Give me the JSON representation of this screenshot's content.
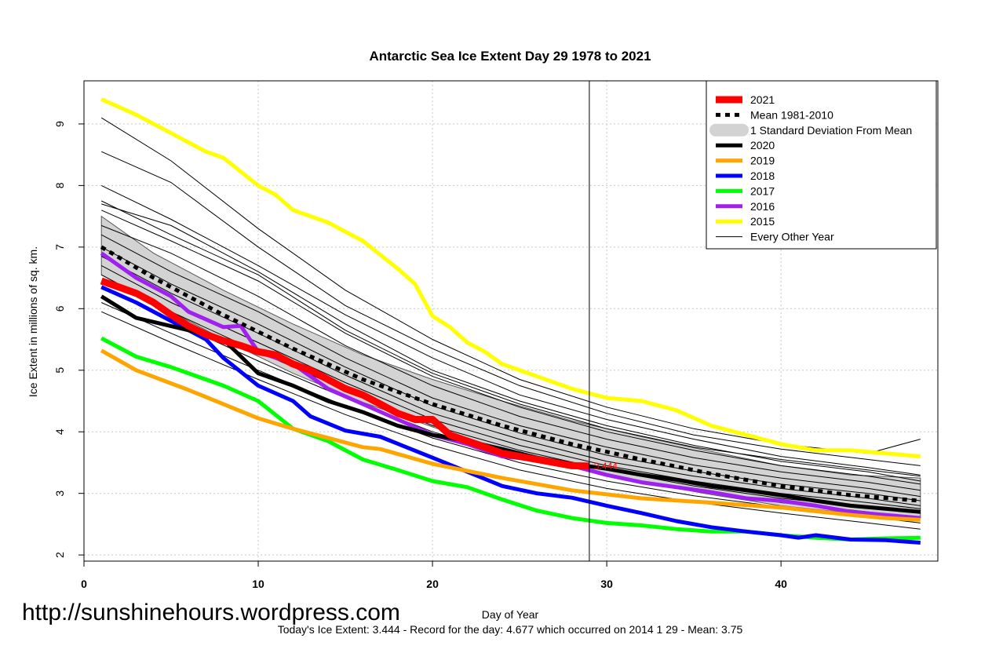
{
  "chart_data": {
    "type": "line",
    "title": "Antarctic Sea Ice Extent Day 29 1978 to 2021",
    "xlabel": "Day of Year",
    "ylabel": "Ice Extent in millions of sq. km.",
    "xlim": [
      0,
      49
    ],
    "ylim": [
      1.9,
      9.7
    ],
    "x_ticks": [
      0,
      10,
      20,
      30,
      40
    ],
    "y_ticks": [
      2,
      3,
      4,
      5,
      6,
      7,
      8,
      9
    ],
    "grid": true,
    "legend_position": "top-right",
    "current_day": 29,
    "current_value_label": "3.444",
    "series": [
      {
        "name": "2021",
        "color": "#ff0000",
        "width": 9,
        "x": [
          1,
          2,
          3,
          4,
          5,
          6,
          7,
          8,
          9,
          10,
          11,
          12,
          13,
          14,
          15,
          16,
          17,
          18,
          19,
          20,
          21,
          22,
          23,
          24,
          25,
          26,
          27,
          28,
          29
        ],
        "y": [
          6.45,
          6.35,
          6.25,
          6.1,
          5.9,
          5.72,
          5.58,
          5.48,
          5.4,
          5.3,
          5.25,
          5.1,
          5.0,
          4.85,
          4.7,
          4.6,
          4.45,
          4.3,
          4.2,
          4.2,
          3.95,
          3.85,
          3.75,
          3.65,
          3.6,
          3.55,
          3.5,
          3.45,
          3.444
        ]
      },
      {
        "name": "Mean 1981-2010",
        "color": "#000000",
        "width": 5,
        "dash": "6,6",
        "x": [
          1,
          4,
          8,
          12,
          16,
          20,
          24,
          28,
          32,
          36,
          40,
          44,
          48
        ],
        "y": [
          7.0,
          6.5,
          5.9,
          5.35,
          4.85,
          4.45,
          4.1,
          3.8,
          3.55,
          3.32,
          3.12,
          2.97,
          2.88
        ]
      },
      {
        "name": "2020",
        "color": "#000000",
        "width": 5,
        "x": [
          1,
          3,
          6,
          8,
          10,
          12,
          14,
          16,
          18,
          20,
          22,
          24,
          26,
          28,
          30,
          32,
          34,
          36,
          38,
          40,
          42,
          44,
          46,
          48
        ],
        "y": [
          6.2,
          5.85,
          5.65,
          5.5,
          4.95,
          4.75,
          4.5,
          4.32,
          4.1,
          3.95,
          3.85,
          3.72,
          3.58,
          3.48,
          3.4,
          3.3,
          3.22,
          3.12,
          3.05,
          2.97,
          2.88,
          2.8,
          2.75,
          2.7
        ]
      },
      {
        "name": "2019",
        "color": "#ffa500",
        "width": 5,
        "x": [
          1,
          3,
          6,
          8,
          10,
          12,
          14,
          16,
          17,
          20,
          24,
          28,
          32,
          36,
          40,
          44,
          46,
          48
        ],
        "y": [
          5.32,
          5.0,
          4.68,
          4.45,
          4.22,
          4.05,
          3.9,
          3.75,
          3.72,
          3.48,
          3.25,
          3.05,
          2.92,
          2.85,
          2.77,
          2.65,
          2.6,
          2.57
        ]
      },
      {
        "name": "2018",
        "color": "#0000ff",
        "width": 5,
        "x": [
          1,
          3,
          5,
          7,
          8,
          10,
          12,
          13,
          15,
          17,
          20,
          22,
          24,
          26,
          28,
          30,
          32,
          34,
          36,
          38,
          40,
          41,
          42,
          44,
          46,
          48
        ],
        "y": [
          6.35,
          6.1,
          5.8,
          5.5,
          5.2,
          4.75,
          4.5,
          4.25,
          4.02,
          3.92,
          3.58,
          3.35,
          3.12,
          3.0,
          2.93,
          2.8,
          2.68,
          2.55,
          2.45,
          2.38,
          2.32,
          2.28,
          2.32,
          2.25,
          2.24,
          2.2
        ]
      },
      {
        "name": "2017",
        "color": "#00ff00",
        "width": 5,
        "x": [
          1,
          3,
          5,
          8,
          10,
          12,
          14,
          16,
          18,
          20,
          22,
          24,
          26,
          28,
          30,
          32,
          34,
          36,
          38,
          40,
          42,
          44,
          46,
          48
        ],
        "y": [
          5.52,
          5.22,
          5.05,
          4.75,
          4.5,
          4.05,
          3.85,
          3.55,
          3.38,
          3.2,
          3.1,
          2.9,
          2.72,
          2.6,
          2.52,
          2.48,
          2.42,
          2.38,
          2.38,
          2.32,
          2.28,
          2.25,
          2.27,
          2.28
        ]
      },
      {
        "name": "2016",
        "color": "#a020f0",
        "width": 5,
        "x": [
          1,
          3,
          5,
          6,
          8,
          9,
          10,
          12,
          14,
          16,
          18,
          20,
          22,
          24,
          26,
          28,
          30,
          32,
          34,
          36,
          38,
          40,
          42,
          44,
          46,
          48
        ],
        "y": [
          6.9,
          6.5,
          6.2,
          5.95,
          5.7,
          5.72,
          5.3,
          5.1,
          4.7,
          4.45,
          4.2,
          3.95,
          3.8,
          3.6,
          3.55,
          3.45,
          3.3,
          3.18,
          3.1,
          3.02,
          2.92,
          2.88,
          2.8,
          2.7,
          2.65,
          2.6
        ]
      },
      {
        "name": "2015",
        "color": "#ffff00",
        "width": 5,
        "x": [
          1,
          3,
          5,
          6,
          7,
          8,
          10,
          11,
          12,
          14,
          16,
          18,
          19,
          20,
          21,
          22,
          23,
          24,
          26,
          28,
          30,
          32,
          34,
          36,
          38,
          40,
          42,
          44,
          46,
          48
        ],
        "y": [
          9.4,
          9.15,
          8.85,
          8.7,
          8.55,
          8.45,
          8.0,
          7.85,
          7.6,
          7.4,
          7.1,
          6.65,
          6.4,
          5.88,
          5.7,
          5.45,
          5.3,
          5.1,
          4.9,
          4.7,
          4.55,
          4.5,
          4.35,
          4.1,
          3.95,
          3.8,
          3.7,
          3.7,
          3.65,
          3.6
        ]
      },
      {
        "name": "Every Other Year",
        "color": "#000000",
        "width": 1
      }
    ],
    "sd_band": {
      "name": "1 Standard Deviation From Mean",
      "color": "#d3d3d3",
      "x": [
        1,
        4,
        8,
        12,
        16,
        20,
        24,
        28,
        32,
        36,
        40,
        44,
        48
      ],
      "upper": [
        7.5,
        6.9,
        6.3,
        5.75,
        5.25,
        4.85,
        4.5,
        4.18,
        3.92,
        3.68,
        3.45,
        3.3,
        3.25
      ],
      "lower": [
        6.55,
        6.1,
        5.5,
        4.95,
        4.48,
        4.08,
        3.72,
        3.42,
        3.18,
        2.98,
        2.8,
        2.68,
        2.6
      ]
    },
    "thin_years": [
      {
        "x": [
          1,
          5,
          10,
          15,
          20,
          25,
          30,
          35,
          40,
          45,
          48
        ],
        "y": [
          9.1,
          8.4,
          7.3,
          6.3,
          5.5,
          4.85,
          4.4,
          4.05,
          3.8,
          3.65,
          3.88
        ]
      },
      {
        "x": [
          1,
          5,
          10,
          15,
          20,
          25,
          30,
          35,
          40,
          45,
          48
        ],
        "y": [
          8.55,
          8.05,
          7.0,
          6.05,
          5.35,
          4.75,
          4.3,
          3.95,
          3.72,
          3.55,
          3.45
        ]
      },
      {
        "x": [
          1,
          5,
          10,
          15,
          20,
          25,
          30,
          35,
          40,
          45,
          48
        ],
        "y": [
          8.0,
          7.45,
          6.7,
          5.9,
          5.2,
          4.6,
          4.2,
          3.88,
          3.6,
          3.42,
          3.3
        ]
      },
      {
        "x": [
          1,
          5,
          10,
          15,
          20,
          25,
          30,
          35,
          40,
          45,
          48
        ],
        "y": [
          7.7,
          7.35,
          6.6,
          5.75,
          5.0,
          4.5,
          4.1,
          3.78,
          3.52,
          3.35,
          3.2
        ]
      },
      {
        "x": [
          1,
          5,
          10,
          15,
          20,
          25,
          30,
          35,
          40,
          45,
          48
        ],
        "y": [
          7.6,
          7.1,
          6.45,
          5.6,
          4.9,
          4.4,
          4.0,
          3.7,
          3.45,
          3.28,
          3.15
        ]
      },
      {
        "x": [
          1,
          5,
          10,
          15,
          20,
          25,
          30,
          35,
          40,
          45,
          48
        ],
        "y": [
          7.35,
          6.9,
          6.2,
          5.4,
          4.75,
          4.25,
          3.88,
          3.58,
          3.35,
          3.18,
          3.05
        ]
      },
      {
        "x": [
          1,
          5,
          10,
          15,
          20,
          25,
          30,
          35,
          40,
          45,
          48
        ],
        "y": [
          7.2,
          6.6,
          5.95,
          5.2,
          4.55,
          4.1,
          3.75,
          3.46,
          3.25,
          3.08,
          2.95
        ]
      },
      {
        "x": [
          1,
          5,
          10,
          15,
          20,
          25,
          30,
          35,
          40,
          45,
          48
        ],
        "y": [
          7.0,
          6.4,
          5.75,
          5.05,
          4.42,
          3.98,
          3.62,
          3.36,
          3.15,
          3.0,
          2.88
        ]
      },
      {
        "x": [
          1,
          5,
          10,
          15,
          20,
          25,
          30,
          35,
          40,
          45,
          48
        ],
        "y": [
          6.85,
          6.25,
          5.6,
          4.92,
          4.3,
          3.88,
          3.52,
          3.28,
          3.08,
          2.92,
          2.8
        ]
      },
      {
        "x": [
          1,
          5,
          10,
          15,
          20,
          25,
          30,
          35,
          40,
          45,
          48
        ],
        "y": [
          6.7,
          6.1,
          5.45,
          4.8,
          4.2,
          3.78,
          3.45,
          3.2,
          3.0,
          2.85,
          2.75
        ]
      },
      {
        "x": [
          1,
          5,
          10,
          15,
          20,
          25,
          30,
          35,
          40,
          45,
          48
        ],
        "y": [
          6.55,
          5.95,
          5.3,
          4.68,
          4.1,
          3.7,
          3.38,
          3.12,
          2.92,
          2.78,
          2.68
        ]
      },
      {
        "x": [
          1,
          5,
          10,
          15,
          20,
          25,
          30,
          35,
          40,
          45,
          48
        ],
        "y": [
          6.35,
          5.8,
          5.15,
          4.55,
          4.0,
          3.6,
          3.3,
          3.05,
          2.85,
          2.7,
          2.6
        ]
      },
      {
        "x": [
          1,
          5,
          10,
          15,
          20,
          25,
          30,
          35,
          40,
          45,
          48
        ],
        "y": [
          6.1,
          5.6,
          5.0,
          4.42,
          3.9,
          3.5,
          3.2,
          2.96,
          2.78,
          2.62,
          2.52
        ]
      },
      {
        "x": [
          1,
          5,
          10,
          15,
          20,
          25,
          30,
          35,
          40,
          45,
          48
        ],
        "y": [
          5.95,
          5.45,
          4.85,
          4.28,
          3.78,
          3.38,
          3.08,
          2.86,
          2.68,
          2.52,
          2.42
        ]
      },
      {
        "x": [
          1,
          5,
          10,
          15,
          20,
          25,
          30,
          35,
          40,
          45,
          48
        ],
        "y": [
          7.75,
          7.2,
          6.55,
          5.65,
          4.95,
          4.45,
          4.05,
          3.75,
          3.55,
          3.38,
          3.28
        ]
      }
    ]
  },
  "footer": {
    "watermark": "http://sunshinehours.wordpress.com",
    "stats": "Today's Ice Extent: 3.444  - Record for the day: 4.677 which occurred on 2014 1 29  - Mean: 3.75"
  }
}
